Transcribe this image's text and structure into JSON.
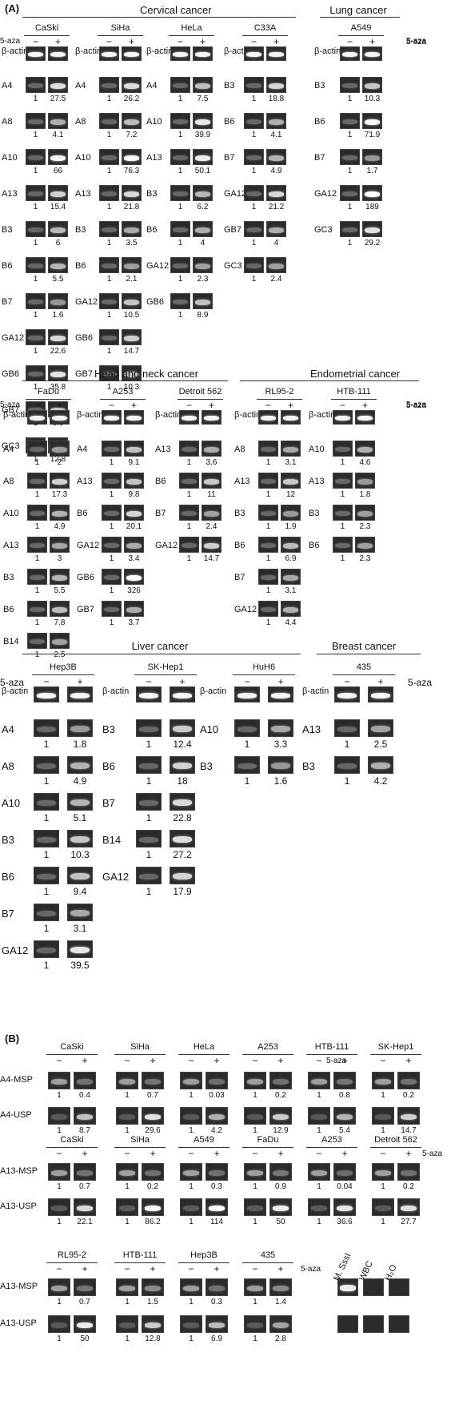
{
  "panels": [
    {
      "label": "(A)",
      "sections": [
        {
          "title": "Cervical cancer",
          "cell_lines": [
            {
              "name": "CaSki",
              "genes": [
                [
                  "A4",
                  "27.5"
                ],
                [
                  "A8",
                  "4.1"
                ],
                [
                  "A10",
                  "66"
                ],
                [
                  "A13",
                  "15.4"
                ],
                [
                  "B3",
                  "6"
                ],
                [
                  "B6",
                  "5.5"
                ],
                [
                  "B7",
                  "1.6"
                ],
                [
                  "GA12",
                  "22.6"
                ],
                [
                  "GB6",
                  "35.8"
                ],
                [
                  "GB7",
                  "8.6"
                ],
                [
                  "GC3",
                  "12.8"
                ]
              ]
            },
            {
              "name": "SiHa",
              "genes": [
                [
                  "A4",
                  "26.2"
                ],
                [
                  "A8",
                  "7.2"
                ],
                [
                  "A10",
                  "76.3"
                ],
                [
                  "A13",
                  "21.8"
                ],
                [
                  "B3",
                  "3.5"
                ],
                [
                  "B6",
                  "2.1"
                ],
                [
                  "GA12",
                  "10.5"
                ],
                [
                  "GB6",
                  "14.7"
                ],
                [
                  "GB7",
                  "10.3"
                ]
              ]
            },
            {
              "name": "HeLa",
              "genes": [
                [
                  "A4",
                  "7.5"
                ],
                [
                  "A10",
                  "39.9"
                ],
                [
                  "A13",
                  "50.1"
                ],
                [
                  "B3",
                  "6.2"
                ],
                [
                  "B6",
                  "4"
                ],
                [
                  "GA12",
                  "2.3"
                ],
                [
                  "GB6",
                  "8.9"
                ]
              ]
            },
            {
              "name": "C33A",
              "genes": [
                [
                  "B3",
                  "18.8"
                ],
                [
                  "B6",
                  "4.1"
                ],
                [
                  "B7",
                  "4.9"
                ],
                [
                  "GA12",
                  "21.2"
                ],
                [
                  "GB7",
                  "4"
                ],
                [
                  "GC3",
                  "2.4"
                ]
              ]
            }
          ]
        },
        {
          "title": "Lung cancer",
          "cell_lines": [
            {
              "name": "A549",
              "genes": [
                [
                  "B3",
                  "10.3"
                ],
                [
                  "B6",
                  "71.9"
                ],
                [
                  "B7",
                  "1.7"
                ],
                [
                  "GA12",
                  "189"
                ],
                [
                  "GC3",
                  "29.2"
                ]
              ]
            }
          ]
        },
        {
          "title": "Head and neck cancer",
          "cell_lines": [
            {
              "name": "FaDu",
              "genes": [
                [
                  "A4",
                  "2"
                ],
                [
                  "A8",
                  "17.3"
                ],
                [
                  "A10",
                  "4.9"
                ],
                [
                  "A13",
                  "3"
                ],
                [
                  "B3",
                  "5.5"
                ],
                [
                  "B6",
                  "7.8"
                ],
                [
                  "B14",
                  "2.5"
                ]
              ]
            },
            {
              "name": "A253",
              "genes": [
                [
                  "A4",
                  "9.1"
                ],
                [
                  "A13",
                  "9.8"
                ],
                [
                  "B6",
                  "20.1"
                ],
                [
                  "GA12",
                  "3.4"
                ],
                [
                  "GB6",
                  "326"
                ],
                [
                  "GB7",
                  "3.7"
                ]
              ]
            },
            {
              "name": "Detroit 562",
              "genes": [
                [
                  "A13",
                  "3.6"
                ],
                [
                  "B6",
                  "11"
                ],
                [
                  "B7",
                  "2.4"
                ],
                [
                  "GA12",
                  "14.7"
                ]
              ]
            }
          ]
        },
        {
          "title": "Endometrial cancer",
          "cell_lines": [
            {
              "name": "RL95-2",
              "genes": [
                [
                  "A8",
                  "3.1"
                ],
                [
                  "A13",
                  "12"
                ],
                [
                  "B3",
                  "1.9"
                ],
                [
                  "B6",
                  "6.9"
                ],
                [
                  "B7",
                  "3.1"
                ],
                [
                  "GA12",
                  "4.4"
                ]
              ]
            },
            {
              "name": "HTB-111",
              "genes": [
                [
                  "A10",
                  "4.6"
                ],
                [
                  "A13",
                  "1.8"
                ],
                [
                  "B3",
                  "2.3"
                ],
                [
                  "B6",
                  "2.3"
                ]
              ]
            }
          ]
        },
        {
          "title": "Liver cancer",
          "cell_lines": [
            {
              "name": "Hep3B",
              "genes": [
                [
                  "A4",
                  "1.8"
                ],
                [
                  "A8",
                  "4.9"
                ],
                [
                  "A10",
                  "5.1"
                ],
                [
                  "B3",
                  "10.3"
                ],
                [
                  "B6",
                  "9.4"
                ],
                [
                  "B7",
                  "3.1"
                ],
                [
                  "GA12",
                  "39.5"
                ]
              ]
            },
            {
              "name": "SK-Hep1",
              "genes": [
                [
                  "B3",
                  "12.4"
                ],
                [
                  "B6",
                  "18"
                ],
                [
                  "B7",
                  "22.8"
                ],
                [
                  "B14",
                  "27.2"
                ],
                [
                  "GA12",
                  "17.9"
                ]
              ]
            },
            {
              "name": "HuH6",
              "genes": [
                [
                  "A10",
                  "3.3"
                ],
                [
                  "B3",
                  "1.6"
                ]
              ]
            }
          ]
        },
        {
          "title": "Breast cancer",
          "cell_lines": [
            {
              "name": "435",
              "genes": [
                [
                  "A13",
                  "2.5"
                ],
                [
                  "B3",
                  "4.2"
                ]
              ]
            }
          ]
        }
      ]
    },
    {
      "label": "(B)",
      "rows": [
        {
          "row_labels": [
            "A4-MSP",
            "A4-USP"
          ],
          "cell_lines": [
            {
              "name": "CaSki",
              "msp": "0.4",
              "usp": "8.7"
            },
            {
              "name": "SiHa",
              "msp": "0.7",
              "usp": "29.6"
            },
            {
              "name": "HeLa",
              "msp": "0.03",
              "usp": "4.2"
            },
            {
              "name": "A253",
              "msp": "0.2",
              "usp": "12.9"
            },
            {
              "name": "HTB-111",
              "msp": "0.8",
              "usp": "5.4"
            },
            {
              "name": "SK-Hep1",
              "msp": "0.2",
              "usp": "14.7"
            }
          ]
        },
        {
          "row_labels": [
            "A13-MSP",
            "A13-USP"
          ],
          "cell_lines": [
            {
              "name": "CaSki",
              "msp": "0.7",
              "usp": "22.1"
            },
            {
              "name": "SiHa",
              "msp": "0.2",
              "usp": "86.2"
            },
            {
              "name": "A549",
              "msp": "0.3",
              "usp": "114"
            },
            {
              "name": "FaDu",
              "msp": "0.9",
              "usp": "50"
            },
            {
              "name": "A253",
              "msp": "0.04",
              "usp": "36.6"
            },
            {
              "name": "Detroit 562",
              "msp": "0.2",
              "usp": "27.7"
            }
          ]
        },
        {
          "row_labels": [
            "A13-MSP",
            "A13-USP"
          ],
          "cell_lines": [
            {
              "name": "RL95-2",
              "msp": "0.7",
              "usp": "50"
            },
            {
              "name": "HTB-111",
              "msp": "1.5",
              "usp": "12.8"
            },
            {
              "name": "Hep3B",
              "msp": "0.3",
              "usp": "6.9"
            },
            {
              "name": "435",
              "msp": "1.4",
              "usp": "2.8"
            }
          ]
        }
      ],
      "controls": [
        "M. SssI",
        "WBC",
        "H₂O"
      ]
    }
  ],
  "common": {
    "reference": "β-actin",
    "untreated": "−",
    "treated": "+",
    "treatment": "5-aza",
    "baseline": "1"
  }
}
